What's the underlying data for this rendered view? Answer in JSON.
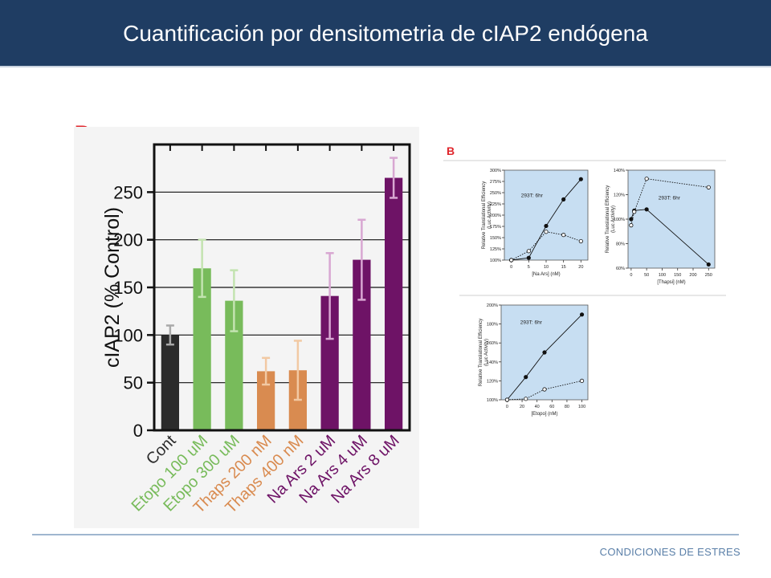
{
  "slide": {
    "title": "Cuantificación por densitometria de cIAP2 endógena",
    "panel_label": "B",
    "footer": "CONDICIONES DE ESTRES"
  },
  "chart_data": [
    {
      "type": "bar",
      "title": "",
      "ylabel": "cIAP2 (% Control)",
      "xlabel": "",
      "ylim": [
        0,
        300
      ],
      "yticks": [
        0,
        50,
        100,
        150,
        200,
        250
      ],
      "grid": true,
      "categories": [
        "Cont",
        "Etopo 100 uM",
        "Etopo 300 uM",
        "Thaps 200 nM",
        "Thaps 400 nM",
        "Na Ars 2 uM",
        "Na Ars 4 uM",
        "Na Ars 8 uM"
      ],
      "values": [
        100,
        170,
        136,
        62,
        63,
        141,
        179,
        265
      ],
      "errors": [
        10,
        30,
        32,
        14,
        31,
        45,
        42,
        21
      ],
      "colors": [
        "#2b2b2b",
        "#78bb5b",
        "#78bb5b",
        "#d98b50",
        "#d98b50",
        "#6e1366",
        "#6e1366",
        "#6e1366"
      ],
      "error_colors": [
        "#a9a9a9",
        "#c3e3b0",
        "#c3e3b0",
        "#f2c9a3",
        "#f2c9a3",
        "#d8a7d2",
        "#d8a7d2",
        "#d8a7d2"
      ]
    },
    {
      "type": "line",
      "panel_label": "B",
      "annotation": "293T: 6hr",
      "ylabel": "Relative Translational Efficiency (Luc Activity)",
      "xlabel": "[Na Ars] (nM)",
      "xticks": [
        0,
        5,
        10,
        15,
        20
      ],
      "ytick_labels": [
        "100%",
        "125%",
        "150%",
        "175%",
        "200%",
        "225%",
        "250%",
        "275%",
        "300%"
      ],
      "ylim": [
        100,
        300
      ],
      "series": [
        {
          "x": [
            0,
            5,
            10,
            15,
            20
          ],
          "y": [
            100,
            105,
            176,
            235,
            280
          ],
          "style": "solid",
          "marker": "filled"
        },
        {
          "x": [
            0,
            5,
            10,
            15,
            20
          ],
          "y": [
            100,
            120,
            163,
            156,
            142
          ],
          "style": "dotted",
          "marker": "open"
        }
      ]
    },
    {
      "type": "line",
      "annotation": "293T: 6hr",
      "ylabel": "Relative Translational Efficiency (Luc Activity)",
      "xlabel": "[Thapsi] (nM)",
      "xticks": [
        0,
        50,
        100,
        150,
        200,
        250
      ],
      "ytick_labels": [
        "60%",
        "80%",
        "100%",
        "120%",
        "140%"
      ],
      "ylim": [
        60,
        140
      ],
      "series": [
        {
          "x": [
            0,
            10,
            50,
            250
          ],
          "y": [
            100,
            107,
            108,
            63
          ],
          "style": "solid",
          "marker": "filled"
        },
        {
          "x": [
            0,
            10,
            50,
            250
          ],
          "y": [
            95,
            106,
            133,
            126
          ],
          "style": "dotted",
          "marker": "open"
        }
      ]
    },
    {
      "type": "line",
      "annotation": "293T: 6hr",
      "ylabel": "Relative Translational Efficiency (Luc Activity)",
      "xlabel": "[Etopo] (nM)",
      "xticks": [
        0,
        20,
        40,
        60,
        80,
        100
      ],
      "ytick_labels": [
        "100%",
        "120%",
        "140%",
        "160%",
        "180%",
        "200%"
      ],
      "ylim": [
        100,
        200
      ],
      "series": [
        {
          "x": [
            0,
            25,
            50,
            100
          ],
          "y": [
            100,
            124,
            150,
            190
          ],
          "style": "solid",
          "marker": "filled"
        },
        {
          "x": [
            0,
            25,
            50,
            100
          ],
          "y": [
            100,
            101,
            111,
            120
          ],
          "style": "dotted",
          "marker": "open"
        }
      ]
    }
  ]
}
